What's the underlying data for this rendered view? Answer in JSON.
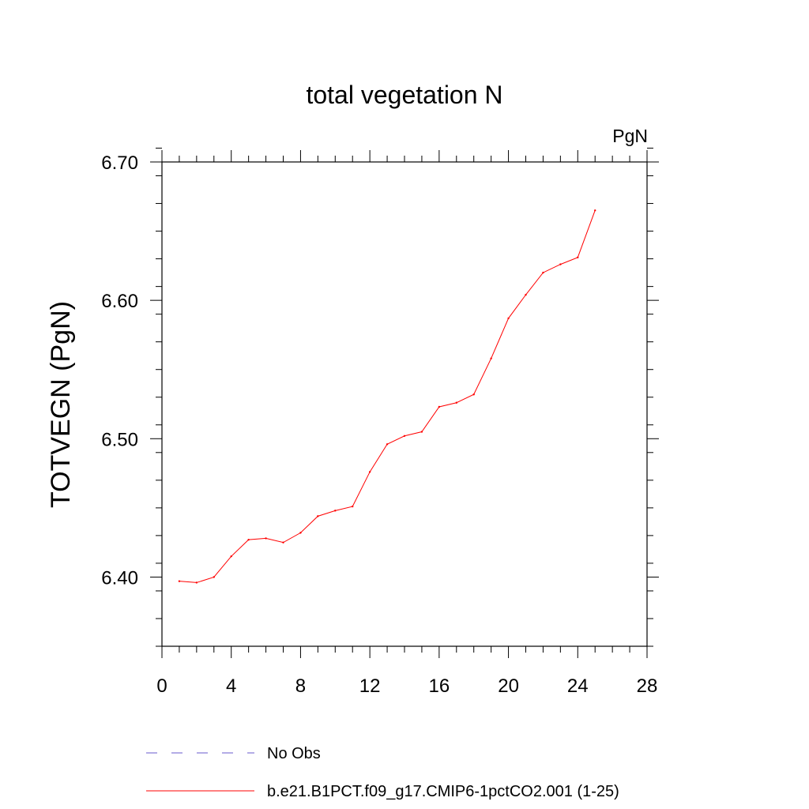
{
  "chart_data": {
    "type": "line",
    "title": "total vegetation N",
    "units_label": "PgN",
    "ylabel": "TOTVEGN  (PgN)",
    "xlabel": "",
    "xlim": [
      0,
      28
    ],
    "ylim": [
      6.35,
      6.7
    ],
    "x_ticks": [
      0,
      4,
      8,
      12,
      16,
      20,
      24,
      28
    ],
    "y_ticks": [
      6.4,
      6.5,
      6.6,
      6.7
    ],
    "x_tick_labels": [
      "0",
      "4",
      "8",
      "12",
      "16",
      "20",
      "24",
      "28"
    ],
    "y_tick_labels": [
      "6.40",
      "6.50",
      "6.60",
      "6.70"
    ],
    "x_minor_step": 1,
    "y_minor_step": 0.02,
    "grid": false,
    "legend_position": "bottom",
    "series": [
      {
        "name": "No Obs",
        "color": "#6a5acd",
        "dash": "dashed",
        "x": [],
        "values": []
      },
      {
        "name": "b.e21.B1PCT.f09_g17.CMIP6-1pctCO2.001 (1-25)",
        "color": "#ff0000",
        "dash": "solid",
        "x": [
          1,
          2,
          3,
          4,
          5,
          6,
          7,
          8,
          9,
          10,
          11,
          12,
          13,
          14,
          15,
          16,
          17,
          18,
          19,
          20,
          21,
          22,
          23,
          24,
          25
        ],
        "values": [
          6.397,
          6.396,
          6.4,
          6.415,
          6.427,
          6.428,
          6.425,
          6.432,
          6.444,
          6.448,
          6.451,
          6.476,
          6.496,
          6.502,
          6.505,
          6.523,
          6.526,
          6.532,
          6.558,
          6.587,
          6.604,
          6.62,
          6.626,
          6.631,
          6.665
        ]
      }
    ]
  }
}
